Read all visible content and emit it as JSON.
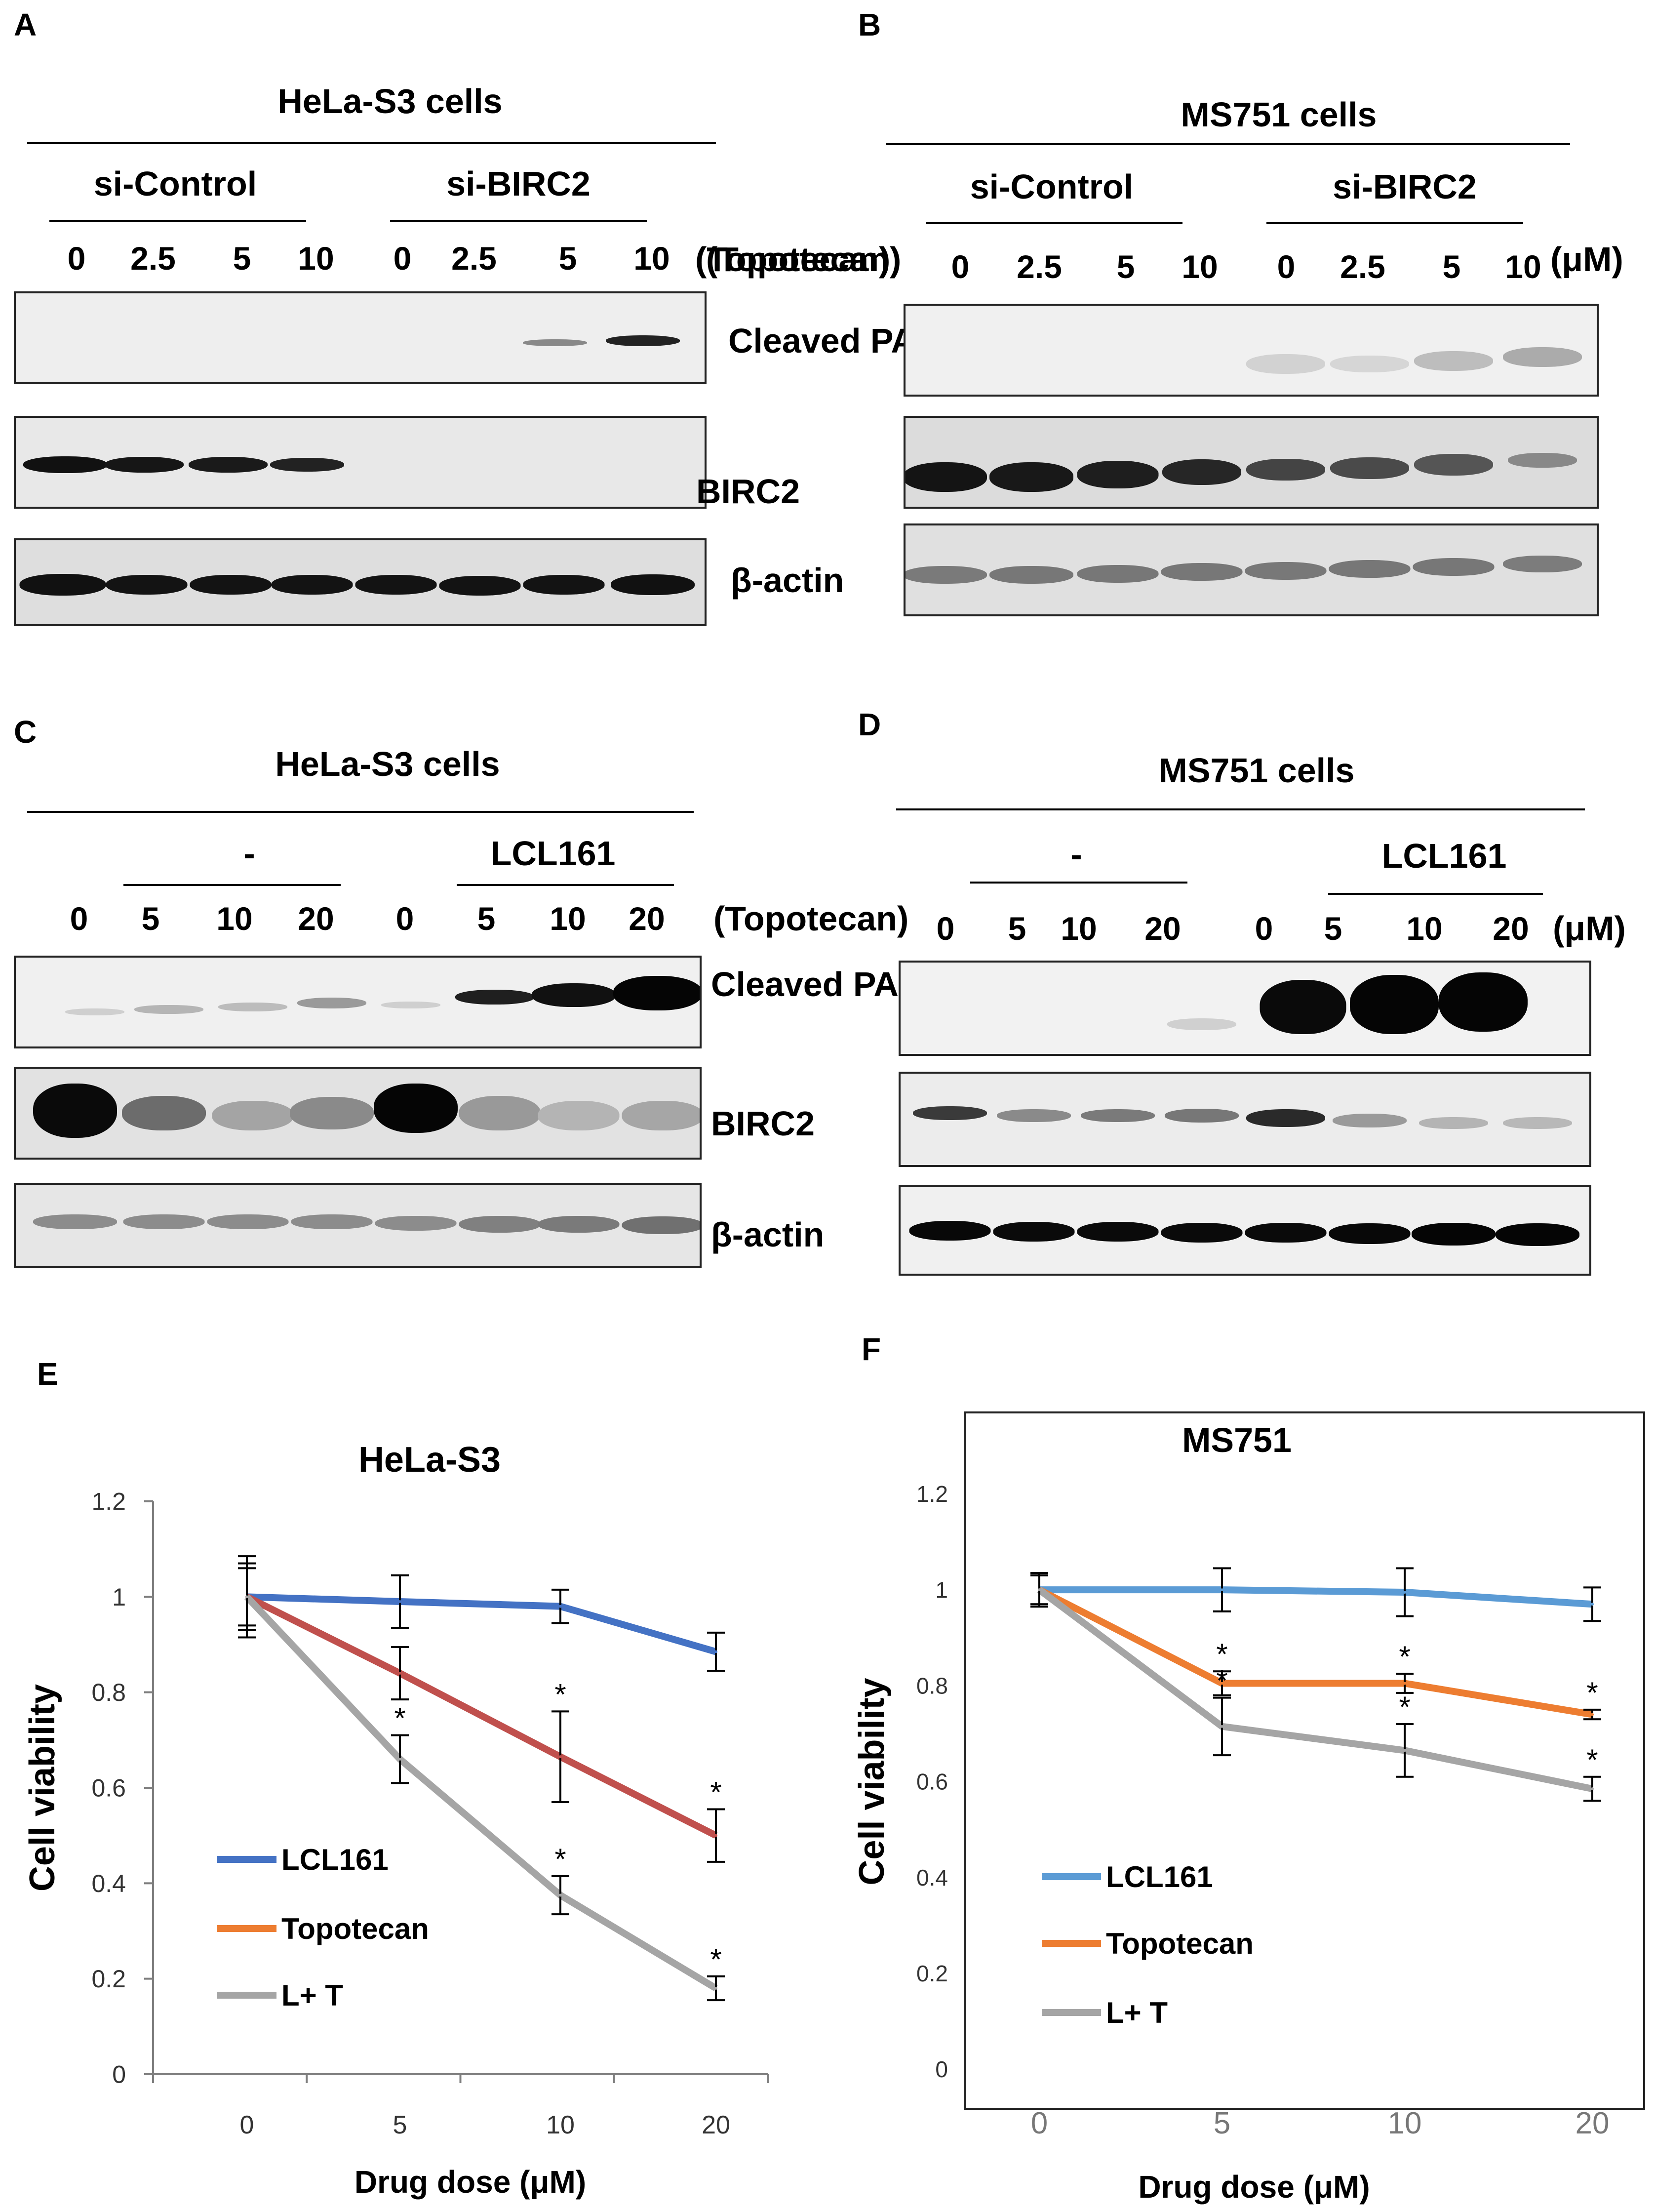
{
  "panels": {
    "A": {
      "label": "A",
      "title": "HeLa-S3 cells",
      "group1": "si-Control",
      "group2": "si-BIRC2",
      "lanes": [
        "0",
        "2.5",
        "5",
        "10",
        "0",
        "2.5",
        "5",
        "10"
      ],
      "unit": "(Topotecan)",
      "rows": [
        "Cleaved PARP",
        "BIRC2",
        "β-actin"
      ]
    },
    "B": {
      "label": "B",
      "title": "MS751 cells",
      "group1": "si-Control",
      "group2": "si-BIRC2",
      "pre_unit": "(Topotecan)",
      "lanes": [
        "0",
        "2.5",
        "5",
        "10",
        "0",
        "2.5",
        "5",
        "10"
      ],
      "unit": "(μM)"
    },
    "C": {
      "label": "C",
      "title": "HeLa-S3 cells",
      "group1": "-",
      "group2": "LCL161",
      "lanes": [
        "0",
        "5",
        "10",
        "20",
        "0",
        "5",
        "10",
        "20"
      ],
      "unit": "(Topotecan)",
      "rows": [
        "Cleaved PARP",
        "BIRC2",
        "β-actin"
      ]
    },
    "D": {
      "label": "D",
      "title": "MS751 cells",
      "group1": "-",
      "group2": "LCL161",
      "lanes": [
        "0",
        "5",
        "10",
        "20",
        "0",
        "5",
        "10",
        "20"
      ],
      "unit": "(μM)"
    },
    "E": {
      "label": "E"
    },
    "F": {
      "label": "F"
    }
  },
  "chart_data": [
    {
      "type": "line",
      "title": "HeLa-S3",
      "xlabel": "Drug dose  (μM)",
      "ylabel": "Cell viability",
      "categories": [
        "0",
        "5",
        "10",
        "20"
      ],
      "ylim": [
        0,
        1.2
      ],
      "yticks": [
        "0",
        "0.2",
        "0.4",
        "0.6",
        "0.8",
        "1",
        "1.2"
      ],
      "legend_position": "lower-left",
      "series": [
        {
          "name": "LCL161",
          "color": "#4472c4",
          "values": [
            1.0,
            0.99,
            0.98,
            0.885
          ],
          "errors": [
            0.085,
            0.055,
            0.035,
            0.04
          ],
          "stars": [
            false,
            false,
            false,
            false
          ]
        },
        {
          "name": "Topotecan",
          "color": "#c0504d",
          "legend_color": "#ed7d31",
          "values": [
            1.0,
            0.84,
            0.665,
            0.5
          ],
          "errors": [
            0.07,
            0.055,
            0.095,
            0.055
          ],
          "stars": [
            false,
            false,
            true,
            true
          ]
        },
        {
          "name": "L+ T",
          "color": "#a5a5a5",
          "values": [
            1.0,
            0.66,
            0.375,
            0.18
          ],
          "errors": [
            0.06,
            0.05,
            0.04,
            0.025
          ],
          "stars": [
            false,
            true,
            true,
            true
          ]
        }
      ],
      "star_text": "*"
    },
    {
      "type": "line",
      "title": "MS751",
      "xlabel": "Drug dose  (μM)",
      "ylabel": "Cell viability",
      "categories": [
        "0",
        "5",
        "10",
        "20"
      ],
      "ylim": [
        0,
        1.2
      ],
      "yticks": [
        "0",
        "0.2",
        "0.4",
        "0.6",
        "0.8",
        "1",
        "1.2"
      ],
      "legend_position": "lower-left",
      "series": [
        {
          "name": "LCL161",
          "color": "#5b9bd5",
          "values": [
            1.0,
            1.0,
            0.995,
            0.97
          ],
          "errors": [
            0.035,
            0.045,
            0.05,
            0.035
          ],
          "stars": [
            false,
            false,
            false,
            false
          ]
        },
        {
          "name": "Topotecan",
          "color": "#ed7d31",
          "values": [
            1.0,
            0.805,
            0.805,
            0.74
          ],
          "errors": [
            0.03,
            0.025,
            0.02,
            0.01
          ],
          "stars": [
            false,
            true,
            true,
            true
          ]
        },
        {
          "name": "L+ T",
          "color": "#a5a5a5",
          "values": [
            1.0,
            0.715,
            0.665,
            0.585
          ],
          "errors": [
            0.035,
            0.06,
            0.055,
            0.025
          ],
          "stars": [
            false,
            true,
            true,
            true
          ]
        }
      ],
      "star_text": "*"
    }
  ]
}
